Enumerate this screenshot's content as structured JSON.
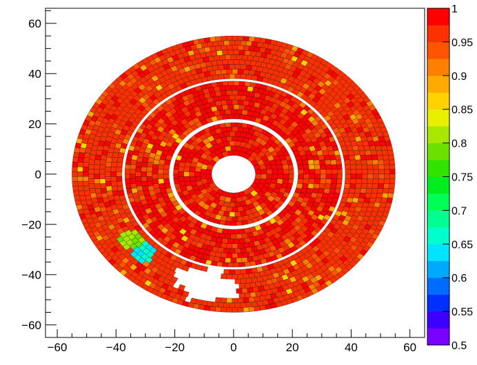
{
  "chart_data": {
    "type": "heatmap",
    "title": "",
    "xlabel": "",
    "ylabel": "",
    "xlim": [
      -64,
      65
    ],
    "ylim": [
      -65,
      66
    ],
    "x_ticks": [
      -60,
      -40,
      -20,
      0,
      20,
      40,
      60
    ],
    "y_ticks": [
      60,
      40,
      20,
      0,
      -20,
      -40,
      -60
    ],
    "x_tick_labels": [
      "−60",
      "−40",
      "−20",
      "0",
      "20",
      "40",
      "60"
    ],
    "y_tick_labels": [
      "60",
      "40",
      "20",
      "0",
      "−20",
      "−40",
      "−60"
    ],
    "colorbar": {
      "min": 0.5,
      "max": 1.0,
      "tick_labels": [
        "1",
        "0.95",
        "0.9",
        "0.85",
        "0.8",
        "0.75",
        "0.7",
        "0.65",
        "0.6",
        "0.55",
        "0.5"
      ],
      "tick_values": [
        1.0,
        0.95,
        0.9,
        0.85,
        0.8,
        0.75,
        0.7,
        0.65,
        0.6,
        0.55,
        0.5
      ],
      "palette": [
        "#7a00ff",
        "#3c00ff",
        "#0030ff",
        "#006cff",
        "#00a8ff",
        "#00e4ff",
        "#00ffcc",
        "#00ff90",
        "#00ff54",
        "#00ee20",
        "#30e400",
        "#6ce000",
        "#a8e800",
        "#e8f000",
        "#ffd200",
        "#ffaa00",
        "#ff8000",
        "#ff5400",
        "#ff3000",
        "#ff0000"
      ]
    },
    "rings": [
      {
        "r_inner": 7.5,
        "r_outer": 20.5,
        "typical_value": 0.97
      },
      {
        "r_inner": 22,
        "r_outer": 37,
        "typical_value": 0.97
      },
      {
        "r_inner": 38,
        "r_outer": 55,
        "typical_value": 0.95
      }
    ],
    "low_efficiency_regions": [
      {
        "label": "green patch",
        "x": -35,
        "y": -26,
        "value": 0.8
      },
      {
        "label": "blue patch",
        "x": -31,
        "y": -31,
        "value": 0.65
      }
    ],
    "missing_regions": [
      {
        "x_range": [
          -20,
          1
        ],
        "y_range": [
          -50,
          -38
        ]
      }
    ]
  }
}
